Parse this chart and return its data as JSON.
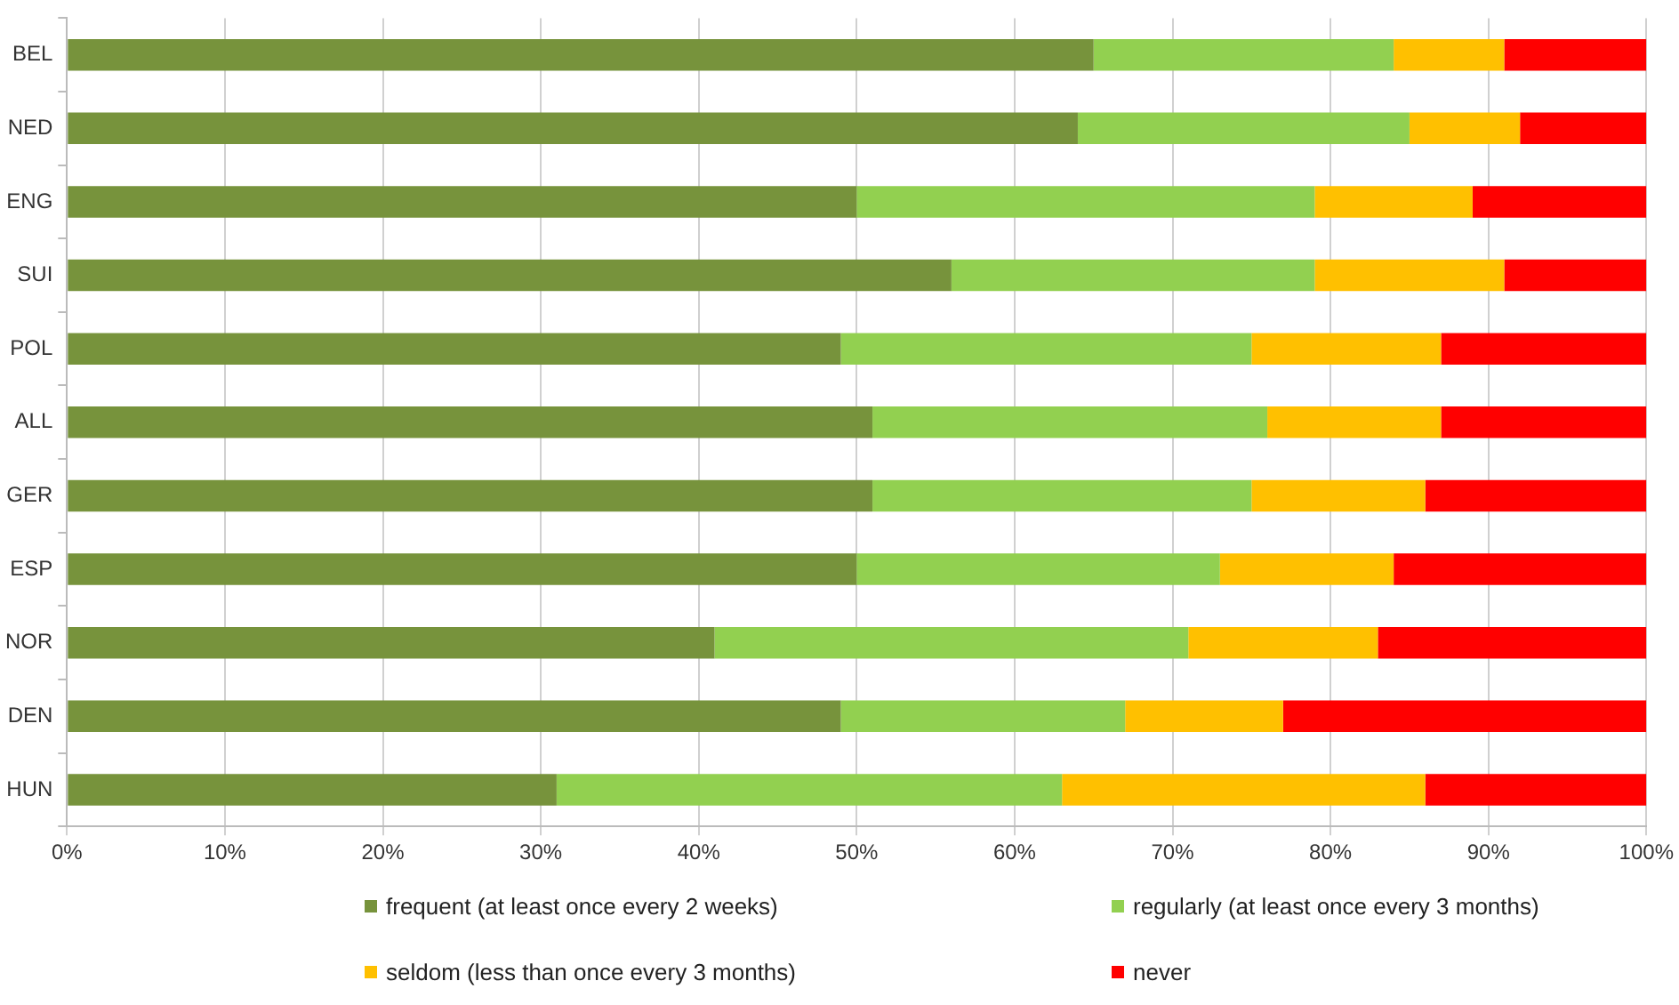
{
  "chart_data": {
    "type": "bar",
    "orientation": "horizontal",
    "stacked": true,
    "categories": [
      "BEL",
      "NED",
      "ENG",
      "SUI",
      "POL",
      "ALL",
      "GER",
      "ESP",
      "NOR",
      "DEN",
      "HUN"
    ],
    "series": [
      {
        "name": "frequent (at least once every 2 weeks)",
        "color": "#77933c",
        "values": [
          65,
          64,
          50,
          56,
          49,
          51,
          51,
          50,
          41,
          49,
          31
        ]
      },
      {
        "name": "regularly (at least once every 3 months)",
        "color": "#92d050",
        "values": [
          19,
          21,
          29,
          23,
          26,
          25,
          24,
          23,
          30,
          18,
          32
        ]
      },
      {
        "name": "seldom (less than once every 3 months)",
        "color": "#ffc000",
        "values": [
          7,
          7,
          10,
          12,
          12,
          11,
          11,
          11,
          12,
          10,
          23
        ]
      },
      {
        "name": "never",
        "color": "#ff0000",
        "values": [
          9,
          8,
          11,
          9,
          13,
          13,
          14,
          16,
          17,
          23,
          14
        ]
      }
    ],
    "xlim": [
      0,
      100
    ],
    "xticks": [
      {
        "value": 0,
        "label": "0%"
      },
      {
        "value": 10,
        "label": "10%"
      },
      {
        "value": 20,
        "label": "20%"
      },
      {
        "value": 30,
        "label": "30%"
      },
      {
        "value": 40,
        "label": "40%"
      },
      {
        "value": 50,
        "label": "50%"
      },
      {
        "value": 60,
        "label": "60%"
      },
      {
        "value": 70,
        "label": "70%"
      },
      {
        "value": 80,
        "label": "80%"
      },
      {
        "value": 90,
        "label": "90%"
      },
      {
        "value": 100,
        "label": "100%"
      }
    ],
    "grid": "x",
    "legend": "bottom"
  }
}
